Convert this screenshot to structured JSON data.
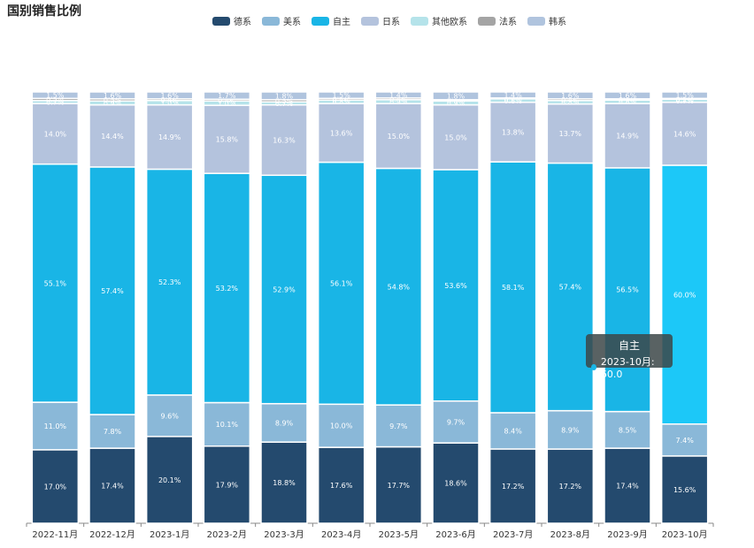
{
  "chart_data": {
    "type": "bar",
    "stacked": true,
    "title": "国别销售比例",
    "categories": [
      "2022-11月",
      "2022-12月",
      "2023-1月",
      "2023-2月",
      "2023-3月",
      "2023-4月",
      "2023-5月",
      "2023-6月",
      "2023-7月",
      "2023-8月",
      "2023-9月",
      "2023-10月"
    ],
    "series": [
      {
        "name": "德系",
        "color": "#244a6e",
        "values": [
          17.0,
          17.4,
          20.1,
          17.9,
          18.8,
          17.6,
          17.7,
          18.6,
          17.2,
          17.2,
          17.4,
          15.6
        ]
      },
      {
        "name": "美系",
        "color": "#8ab8d8",
        "values": [
          11.0,
          7.8,
          9.6,
          10.1,
          8.9,
          10.0,
          9.7,
          9.7,
          8.4,
          8.9,
          8.5,
          7.4
        ]
      },
      {
        "name": "自主",
        "color": "#19b5e6",
        "values": [
          55.1,
          57.4,
          52.3,
          53.2,
          52.9,
          56.1,
          54.8,
          53.6,
          58.1,
          57.4,
          56.5,
          60.0
        ]
      },
      {
        "name": "日系",
        "color": "#b4c3dd",
        "values": [
          14.0,
          14.4,
          14.9,
          15.8,
          16.3,
          13.6,
          15.0,
          15.0,
          13.8,
          13.7,
          14.9,
          14.6
        ]
      },
      {
        "name": "其他欧系",
        "color": "#b5e3ea",
        "values": [
          0.7,
          0.9,
          1.0,
          1.0,
          0.7,
          0.8,
          0.9,
          0.9,
          0.8,
          0.8,
          0.8,
          0.7
        ]
      },
      {
        "name": "法系",
        "color": "#a4a4a4",
        "values": [
          0.5,
          0.5,
          0.4,
          0.4,
          0.5,
          0.4,
          0.4,
          0.3,
          0.2,
          0.4,
          0.3,
          0.2
        ]
      },
      {
        "name": "韩系",
        "color": "#b0c4de",
        "values": [
          1.5,
          1.6,
          1.6,
          1.7,
          1.8,
          1.5,
          1.4,
          1.8,
          1.4,
          1.6,
          1.6,
          1.5
        ]
      }
    ],
    "legend_position": "top-center",
    "highlighted": {
      "series": "自主",
      "category": "2023-10月",
      "color": "#1cc8f8"
    }
  },
  "tooltip": {
    "title": "自主",
    "text": "2023-10月: 60.0"
  }
}
